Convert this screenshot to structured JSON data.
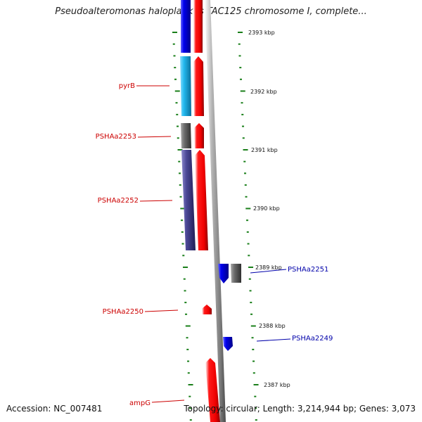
{
  "title": "Pseudoalteromonas haloplanktis TAC125 chromosome I, complete...",
  "footer": {
    "accession": "Accession: NC_007481",
    "topology": "Topology: circular; Length: 3,214,944 bp; Genes: 3,073"
  },
  "kbp_labels": [
    "2393 kbp",
    "2392 kbp",
    "2391 kbp",
    "2390 kbp",
    "2389 kbp",
    "2388 kbp",
    "2387 kbp"
  ],
  "genes": [
    {
      "label": "pyrB",
      "color": "#cc0000"
    },
    {
      "label": "PSHAa2253",
      "color": "#cc0000"
    },
    {
      "label": "PSHAa2252",
      "color": "#cc0000"
    },
    {
      "label": "PSHAa2251",
      "color": "#0000aa"
    },
    {
      "label": "PSHAa2250",
      "color": "#cc0000"
    },
    {
      "label": "PSHAa2249",
      "color": "#0000aa"
    },
    {
      "label": "ampG",
      "color": "#cc0000"
    }
  ],
  "colors": {
    "forward_strand": "#ff0000",
    "reverse_strand": "#0000ee",
    "cog_cyan": "#22b8ee",
    "cog_gray": "#6b6b6b",
    "cog_purple": "#4c4896",
    "backbone": "#8c8c8c",
    "tick": "#1a7f1a"
  }
}
